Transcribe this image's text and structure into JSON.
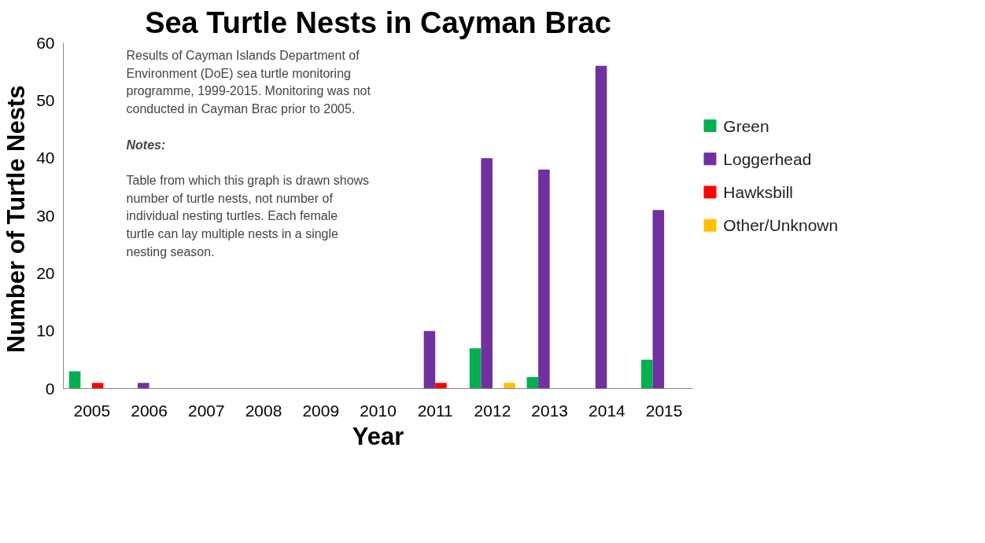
{
  "chart_data": {
    "type": "bar",
    "title": "Sea Turtle Nests in Cayman Brac",
    "xlabel": "Year",
    "ylabel": "Number of  Turtle Nests",
    "categories": [
      "2005",
      "2006",
      "2007",
      "2008",
      "2009",
      "2010",
      "2011",
      "2012",
      "2013",
      "2014",
      "2015"
    ],
    "series": [
      {
        "name": "Green",
        "color": "#00b050",
        "values": [
          3,
          0,
          0,
          0,
          0,
          0,
          0,
          7,
          2,
          0,
          5
        ]
      },
      {
        "name": "Loggerhead",
        "color": "#7030a0",
        "values": [
          0,
          1,
          0,
          0,
          0,
          0,
          10,
          40,
          38,
          56,
          31
        ]
      },
      {
        "name": "Hawksbill",
        "color": "#ff0000",
        "values": [
          1,
          0,
          0,
          0,
          0,
          0,
          1,
          0,
          0,
          0,
          0
        ]
      },
      {
        "name": "Other/Unknown",
        "color": "#ffc000",
        "values": [
          0,
          0,
          0,
          0,
          0,
          0,
          0,
          1,
          0,
          0,
          0
        ]
      }
    ],
    "ylim": [
      0,
      60
    ],
    "yticks": [
      0,
      10,
      20,
      30,
      40,
      50,
      60
    ],
    "grid": false,
    "legend": "right",
    "annotations": [
      "Results of Cayman Islands Department of Environment (DoE) sea turtle monitoring programme, 1999-2015. Monitoring was not conducted in Cayman Brac prior to 2005.",
      "Notes:",
      "Table from which this graph is drawn shows number of turtle nests, not number of individual nesting turtles. Each female turtle can lay multiple nests in a single nesting season."
    ]
  }
}
